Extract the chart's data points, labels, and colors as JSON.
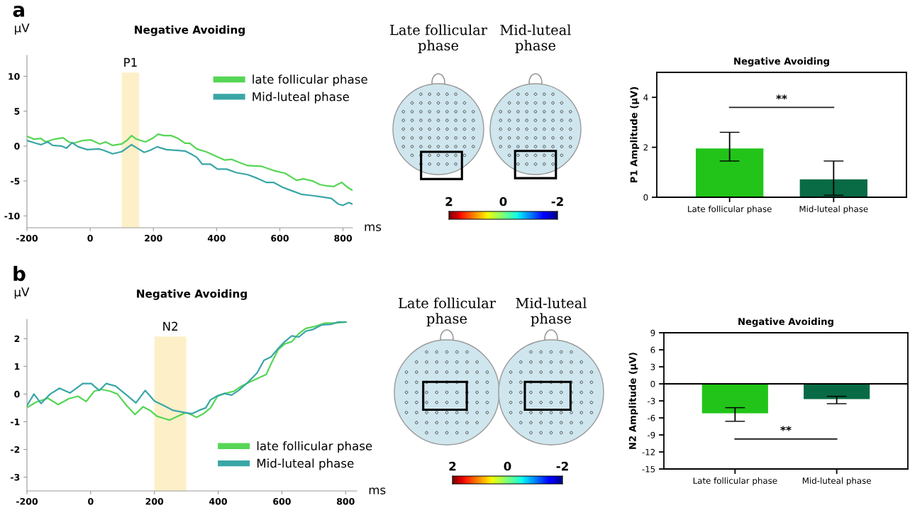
{
  "chart_data": [
    {
      "type": "line",
      "title": "Negative Avoiding",
      "ylabel": "μV",
      "xlabel": "ms",
      "annotations": [
        "a"
      ],
      "xlim": [
        -200,
        830
      ],
      "xticks": [
        -200,
        0,
        200,
        400,
        600,
        800
      ],
      "ylim": [
        -11.7,
        13
      ],
      "yticks": [
        -10,
        -5,
        0,
        5,
        10
      ],
      "grid": false,
      "legend": "top right",
      "bands": [
        {
          "axis": "x",
          "from": 100,
          "to": 155,
          "label": "P1",
          "color": "#fdf0c8"
        }
      ],
      "series": [
        {
          "name": "late follicular phase",
          "color": "#55d655",
          "x": [
            -200,
            -178,
            -156,
            -141,
            -112,
            -86,
            -68,
            -53,
            -24,
            2,
            16,
            31,
            49,
            71,
            100,
            116,
            131,
            146,
            175,
            197,
            215,
            234,
            256,
            278,
            300,
            315,
            337,
            366,
            396,
            425,
            447,
            469,
            499,
            543,
            580,
            617,
            653,
            675,
            704,
            726,
            748,
            770,
            796,
            814,
            829
          ],
          "values": [
            1.4,
            1.0,
            1.1,
            0.6,
            1.0,
            1.2,
            0.6,
            0.4,
            0.8,
            0.9,
            0.6,
            0.3,
            0.6,
            0.1,
            0.3,
            0.8,
            1.5,
            1.0,
            0.6,
            1.1,
            1.7,
            1.5,
            1.5,
            1.1,
            0.4,
            0.4,
            -0.4,
            -0.8,
            -1.4,
            -2.0,
            -1.9,
            -2.3,
            -2.8,
            -2.9,
            -3.5,
            -3.9,
            -4.9,
            -4.7,
            -5.0,
            -5.5,
            -5.7,
            -5.8,
            -5.2,
            -5.9,
            -6.3
          ]
        },
        {
          "name": "Mid-luteal phase",
          "color": "#3aa6a6",
          "x": [
            -200,
            -171,
            -156,
            -134,
            -119,
            -90,
            -75,
            -57,
            -38,
            -9,
            27,
            42,
            71,
            100,
            131,
            153,
            171,
            190,
            212,
            241,
            271,
            300,
            322,
            337,
            355,
            381,
            403,
            432,
            462,
            499,
            528,
            557,
            580,
            609,
            638,
            668,
            704,
            734,
            763,
            785,
            799,
            818,
            829
          ],
          "values": [
            0.8,
            0.4,
            0.2,
            0.6,
            0.1,
            0.0,
            -0.3,
            0.5,
            -0.1,
            -0.5,
            -0.4,
            -0.6,
            -1.1,
            -0.8,
            0.2,
            -0.4,
            -0.9,
            -0.6,
            -0.1,
            -0.5,
            -0.6,
            -0.7,
            -1.2,
            -1.6,
            -2.6,
            -2.6,
            -3.3,
            -3.3,
            -3.8,
            -4.1,
            -4.6,
            -5.2,
            -5.2,
            -5.9,
            -6.4,
            -6.9,
            -7.1,
            -7.3,
            -7.5,
            -8.3,
            -8.5,
            -8.1,
            -8.3
          ]
        }
      ]
    },
    {
      "type": "other",
      "categories": [
        "Late follicular phase",
        "Mid-luteal phase"
      ],
      "annotations": [
        "2",
        "0",
        "-2"
      ]
    },
    {
      "type": "bar",
      "title": "Negative Avoiding",
      "ylabel": "P1 Amplitude (μV)",
      "categories": [
        "Late follicular phase",
        "Mid-luteal phase"
      ],
      "values": [
        1.95,
        0.72
      ],
      "colors": [
        "#22c41a",
        "#086b45"
      ],
      "errors": [
        [
          1.45,
          2.6
        ],
        [
          0.08,
          1.45
        ]
      ],
      "ylim": [
        0,
        5
      ],
      "yticks": [
        0,
        2,
        4
      ],
      "grid": false,
      "annotations": [
        "**"
      ]
    },
    {
      "type": "line",
      "title": "Negative Avoiding",
      "ylabel": "μV",
      "xlabel": "ms",
      "annotations": [
        "b"
      ],
      "xlim": [
        -200,
        835
      ],
      "xticks": [
        -200,
        0,
        200,
        400,
        600,
        800
      ],
      "ylim": [
        -3.5,
        2.7
      ],
      "yticks": [
        -3,
        -2,
        -1,
        0,
        1,
        2
      ],
      "grid": false,
      "legend": "bottom right",
      "bands": [
        {
          "axis": "x",
          "from": 200,
          "to": 300,
          "label": "N2",
          "color": "#fdf0c8"
        }
      ],
      "series": [
        {
          "name": "late follicular phase",
          "color": "#55d655",
          "x": [
            -200,
            -171,
            -134,
            -102,
            -69,
            -40,
            -14,
            11,
            33,
            62,
            84,
            113,
            139,
            164,
            186,
            208,
            230,
            248,
            274,
            299,
            318,
            332,
            354,
            376,
            398,
            420,
            449,
            471,
            500,
            529,
            551,
            566,
            588,
            609,
            631,
            653,
            675,
            704,
            734,
            763,
            802
          ],
          "values": [
            -0.49,
            -0.29,
            -0.15,
            -0.38,
            -0.17,
            -0.08,
            -0.27,
            0.1,
            0.17,
            0.1,
            0.0,
            -0.42,
            -0.74,
            -0.46,
            -0.59,
            -0.8,
            -0.88,
            -0.94,
            -0.8,
            -0.67,
            -0.76,
            -0.84,
            -0.71,
            -0.5,
            -0.08,
            0.02,
            0.1,
            0.27,
            0.44,
            0.59,
            0.71,
            1.09,
            1.6,
            1.81,
            1.89,
            2.18,
            2.37,
            2.44,
            2.56,
            2.56,
            2.6
          ]
        },
        {
          "name": "Mid-luteal phase",
          "color": "#3aa6a6",
          "x": [
            -200,
            -178,
            -156,
            -127,
            -98,
            -65,
            -25,
            2,
            27,
            49,
            78,
            113,
            142,
            171,
            200,
            230,
            259,
            296,
            318,
            340,
            361,
            376,
            398,
            420,
            442,
            464,
            493,
            522,
            544,
            566,
            588,
            609,
            631,
            653,
            675,
            697,
            726,
            755,
            777,
            799
          ],
          "values": [
            -0.42,
            0.0,
            -0.34,
            0.0,
            0.21,
            0.04,
            0.38,
            0.38,
            0.13,
            0.38,
            0.29,
            -0.04,
            -0.32,
            0.13,
            -0.25,
            -0.42,
            -0.59,
            -0.67,
            -0.71,
            -0.59,
            -0.5,
            -0.21,
            -0.06,
            0.02,
            -0.04,
            0.13,
            0.42,
            0.76,
            1.22,
            1.34,
            1.64,
            1.89,
            2.1,
            2.06,
            2.27,
            2.33,
            2.5,
            2.52,
            2.6,
            2.6
          ]
        }
      ]
    },
    {
      "type": "other",
      "categories": [
        "Late follicular phase",
        "Mid-luteal phase"
      ],
      "annotations": [
        "2",
        "0",
        "-2"
      ]
    },
    {
      "type": "bar",
      "title": "Negative Avoiding",
      "ylabel": "N2 Amplitude (μV)",
      "categories": [
        "Late follicular phase",
        "Mid-luteal phase"
      ],
      "values": [
        -5.2,
        -2.7
      ],
      "colors": [
        "#22c41a",
        "#086b45"
      ],
      "errors": [
        [
          -6.6,
          -4.2
        ],
        [
          -3.5,
          -2.2
        ]
      ],
      "ylim": [
        -15,
        9
      ],
      "yticks": [
        -15,
        -12,
        -9,
        -6,
        -3,
        0,
        3,
        6,
        9
      ],
      "grid": false,
      "ref_lines": [
        {
          "axis": "y",
          "value": 0
        }
      ],
      "annotations": [
        "**"
      ]
    }
  ]
}
